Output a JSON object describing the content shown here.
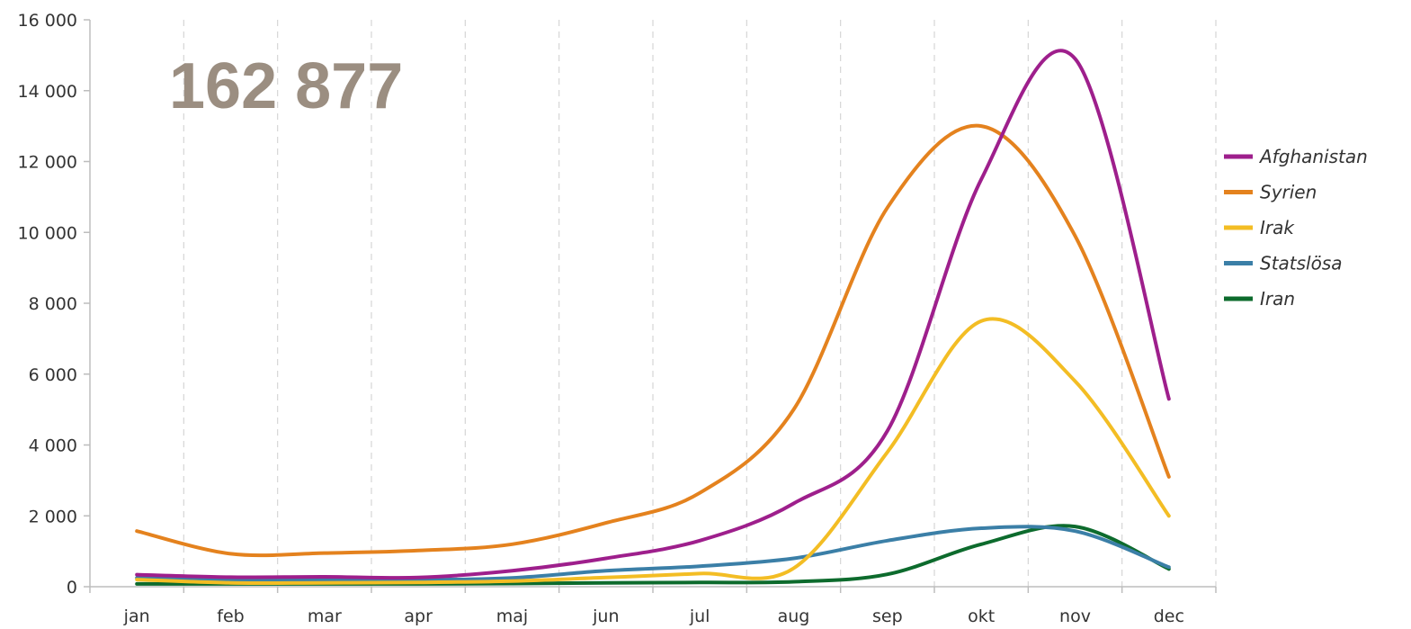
{
  "chart_data": {
    "type": "line",
    "title": "",
    "highlight_total": "162 877",
    "xlabel": "",
    "ylabel": "",
    "categories": [
      "jan",
      "feb",
      "mar",
      "apr",
      "maj",
      "jun",
      "jul",
      "aug",
      "sep",
      "okt",
      "nov",
      "dec"
    ],
    "ylim": [
      0,
      16000
    ],
    "yticks": [
      0,
      2000,
      4000,
      6000,
      8000,
      10000,
      12000,
      14000,
      16000
    ],
    "ytick_labels": [
      "0",
      "2 000",
      "4 000",
      "6 000",
      "8 000",
      "10 000",
      "12 000",
      "14 000",
      "16 000"
    ],
    "grid": "vertical dashed",
    "legend_position": "right",
    "series": [
      {
        "name": "Afghanistan",
        "color": "#9e1f8c",
        "values": [
          340,
          270,
          280,
          260,
          450,
          800,
          1300,
          2350,
          4400,
          11500,
          14900,
          5300
        ]
      },
      {
        "name": "Syrien",
        "color": "#e4821e",
        "values": [
          1570,
          930,
          950,
          1020,
          1200,
          1800,
          2650,
          5000,
          10700,
          13000,
          9900,
          3100
        ]
      },
      {
        "name": "Irak",
        "color": "#f3bd24",
        "values": [
          200,
          110,
          110,
          120,
          160,
          260,
          370,
          520,
          3800,
          7500,
          5800,
          2000
        ]
      },
      {
        "name": "Statslösa",
        "color": "#3b7fa7",
        "values": [
          250,
          180,
          190,
          190,
          250,
          450,
          580,
          800,
          1300,
          1650,
          1570,
          550
        ]
      },
      {
        "name": "Iran",
        "color": "#0d6b2d",
        "values": [
          80,
          80,
          80,
          80,
          90,
          110,
          120,
          140,
          350,
          1200,
          1700,
          500
        ]
      }
    ]
  }
}
